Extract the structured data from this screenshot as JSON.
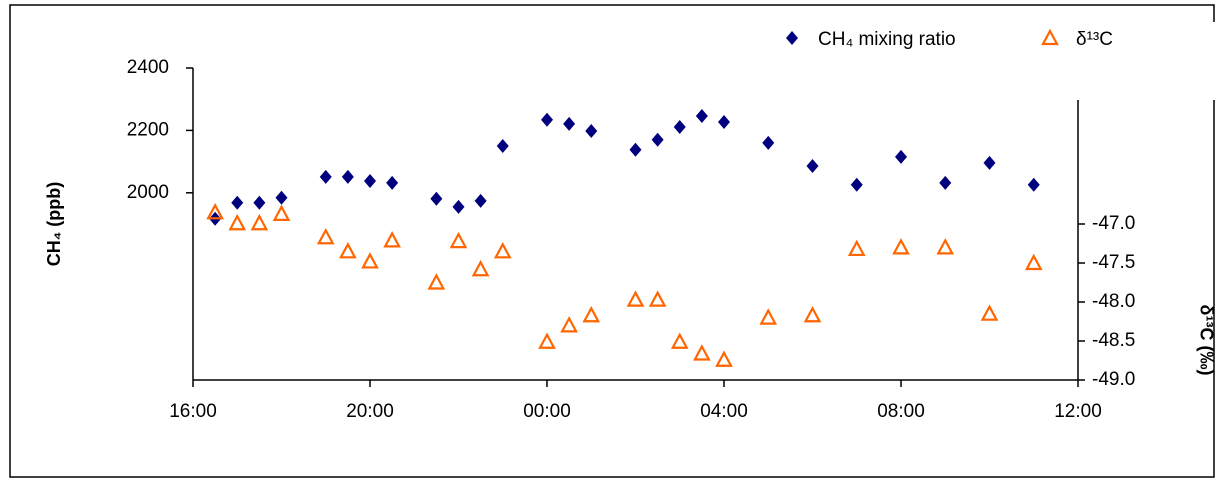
{
  "chart_data": {
    "type": "scatter",
    "y_label": "CH₄ (ppb)",
    "y2_label": "δ¹³C (‰)",
    "xlim": [
      0,
      20
    ],
    "xticks": [
      {
        "value": 0,
        "label": "16:00"
      },
      {
        "value": 4,
        "label": "20:00"
      },
      {
        "value": 8,
        "label": "00:00"
      },
      {
        "value": 12,
        "label": "04:00"
      },
      {
        "value": 16,
        "label": "08:00"
      },
      {
        "value": 20,
        "label": "12:00"
      }
    ],
    "ylim": [
      1400,
      2400
    ],
    "yticks": [
      2000,
      2200,
      2400
    ],
    "y2lim": [
      -49,
      -45
    ],
    "y2ticks": [
      {
        "value": -47,
        "label": "-47.0"
      },
      {
        "value": -47.5,
        "label": "-47.5"
      },
      {
        "value": -48,
        "label": "-48.0"
      },
      {
        "value": -48.5,
        "label": "-48.5"
      },
      {
        "value": -49,
        "label": "-49.0"
      }
    ],
    "series": [
      {
        "name": "CH₄ mixing ratio",
        "color": "#00007f",
        "marker": "diamond",
        "x": [
          0.5,
          1,
          1.5,
          2,
          3,
          3.5,
          4,
          4.5,
          5.5,
          6,
          6.5,
          7,
          8,
          8.5,
          9,
          10,
          10.5,
          11,
          11.5,
          12,
          13,
          14,
          15,
          16,
          17,
          18,
          19
        ],
        "values": [
          1917,
          1968,
          1968,
          1984,
          2051,
          2051,
          2038,
          2032,
          1981,
          1955,
          1974,
          2150,
          2234,
          2221,
          2198,
          2138,
          2170,
          2211,
          2246,
          2227,
          2160,
          2086,
          2026,
          2115,
          2032,
          2096,
          2026
        ]
      },
      {
        "name": "δ¹³C",
        "color": "#ff6600",
        "marker": "triangle",
        "axis": "y2",
        "x": [
          0.5,
          1,
          1.5,
          2,
          3,
          3.5,
          4,
          4.5,
          5.5,
          6,
          6.5,
          7,
          8,
          8.5,
          9,
          10,
          10.5,
          11,
          11.5,
          12,
          13,
          14,
          15,
          16,
          17,
          18,
          19
        ],
        "values": [
          -46.85,
          -46.99,
          -46.99,
          -46.87,
          -47.17,
          -47.35,
          -47.48,
          -47.21,
          -47.75,
          -47.22,
          -47.58,
          -47.35,
          -48.51,
          -48.3,
          -48.17,
          -47.97,
          -47.97,
          -48.51,
          -48.66,
          -48.74,
          -48.2,
          -48.17,
          -47.32,
          -47.3,
          -47.3,
          -48.15,
          -47.5
        ]
      }
    ]
  }
}
